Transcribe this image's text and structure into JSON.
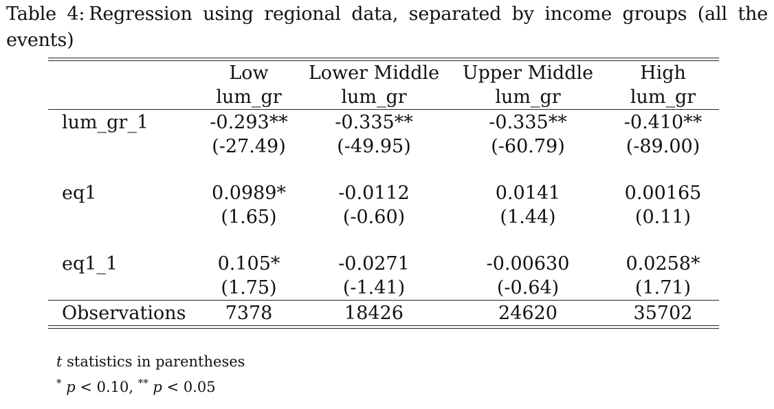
{
  "caption": {
    "label": "Table 4:",
    "text": "Regression using regional data, separated by income groups (all the events)"
  },
  "table": {
    "groups": [
      "Low",
      "Lower Middle",
      "Upper Middle",
      "High"
    ],
    "depvars": [
      "lum_gr",
      "lum_gr",
      "lum_gr",
      "lum_gr"
    ],
    "rows": [
      {
        "label": "lum_gr_1",
        "coefs": [
          "-0.293**",
          "-0.335**",
          "-0.335**",
          "-0.410**"
        ],
        "tstats": [
          "(-27.49)",
          "(-49.95)",
          "(-60.79)",
          "(-89.00)"
        ]
      },
      {
        "label": "eq1",
        "coefs": [
          "0.0989*",
          "-0.0112",
          "0.0141",
          "0.00165"
        ],
        "tstats": [
          "(1.65)",
          "(-0.60)",
          "(1.44)",
          "(0.11)"
        ]
      },
      {
        "label": "eq1_1",
        "coefs": [
          "0.105*",
          "-0.0271",
          "-0.00630",
          "0.0258*"
        ],
        "tstats": [
          "(1.75)",
          "(-1.41)",
          "(-0.64)",
          "(1.71)"
        ]
      }
    ],
    "observations": {
      "label": "Observations",
      "values": [
        "7378",
        "18426",
        "24620",
        "35702"
      ]
    }
  },
  "footnotes": {
    "tstat_var": "t",
    "tstat_note": "statistics in parentheses",
    "sig_star1": "*",
    "sig_p1": "p",
    "sig_lt1": "< 0.10,",
    "sig_star2": "**",
    "sig_p2": "p",
    "sig_lt2": "< 0.05"
  }
}
